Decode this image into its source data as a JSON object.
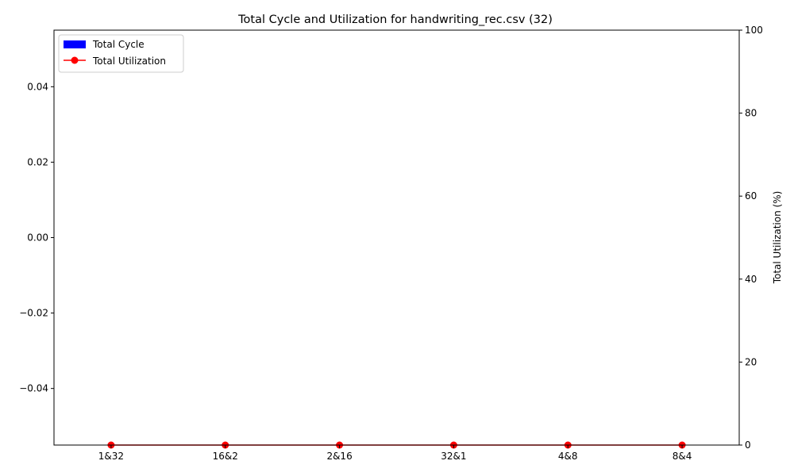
{
  "chart_data": {
    "type": "bar+line",
    "title": "Total Cycle and Utilization for handwriting_rec.csv (32)",
    "categories": [
      "1&32",
      "16&2",
      "2&16",
      "32&1",
      "4&8",
      "8&4"
    ],
    "left_axis": {
      "label": "",
      "ylim": [
        -0.055,
        0.055
      ],
      "ticks": [
        -0.04,
        -0.02,
        0.0,
        0.02,
        0.04
      ],
      "tick_labels": [
        "−0.04",
        "−0.02",
        "0.00",
        "0.02",
        "0.04"
      ]
    },
    "right_axis": {
      "label": "Total Utilization (%)",
      "ylim": [
        0,
        100
      ],
      "ticks": [
        0,
        20,
        40,
        60,
        80,
        100
      ],
      "tick_labels": [
        "0",
        "20",
        "40",
        "60",
        "80",
        "100"
      ]
    },
    "series": [
      {
        "name": "Total Cycle",
        "kind": "bar",
        "axis": "left",
        "color": "#0000ff",
        "values": [
          0,
          0,
          0,
          0,
          0,
          0
        ]
      },
      {
        "name": "Total Utilization",
        "kind": "line",
        "axis": "right",
        "color": "#ff0000",
        "marker": "circle",
        "values": [
          0,
          0,
          0,
          0,
          0,
          0
        ]
      }
    ],
    "legend": {
      "position": "top-left"
    },
    "grid": false
  }
}
